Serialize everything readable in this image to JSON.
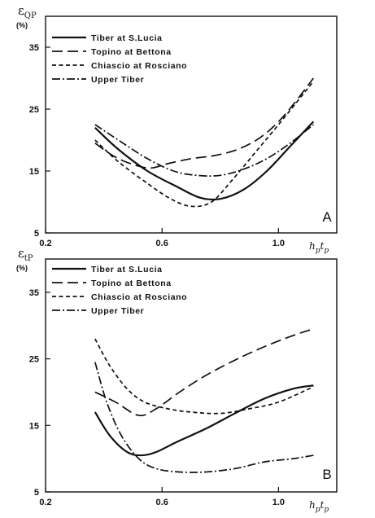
{
  "chart_data": [
    {
      "type": "line",
      "panel_label": "A",
      "ylabel": "ε",
      "ylabel_sub": "QP",
      "yunit": "(%)",
      "xlabel": "h",
      "xlabel_sub1": "p",
      "xlabel_mid": "t",
      "xlabel_sub2": "p",
      "xlim": [
        0.2,
        1.2
      ],
      "ylim": [
        5,
        40
      ],
      "xticks": [
        "0.2",
        "0.6",
        "1.0"
      ],
      "yticks": [
        "5",
        "15",
        "25",
        "35"
      ],
      "legend_position": "top-left",
      "series": [
        {
          "name": "Tiber at S.Lucia",
          "style": "solid",
          "x": [
            0.37,
            0.45,
            0.55,
            0.65,
            0.73,
            0.8,
            0.88,
            0.96,
            1.04,
            1.12
          ],
          "y": [
            22.0,
            18.5,
            15.0,
            12.5,
            10.7,
            10.5,
            12.0,
            15.0,
            19.0,
            23.0
          ]
        },
        {
          "name": "Topino at Bettona",
          "style": "long-dash",
          "x": [
            0.37,
            0.45,
            0.55,
            0.62,
            0.7,
            0.78,
            0.86,
            0.94,
            1.02,
            1.12
          ],
          "y": [
            19.5,
            17.0,
            15.5,
            16.2,
            17.0,
            17.5,
            18.5,
            20.5,
            24.0,
            30.0
          ]
        },
        {
          "name": "Chiascio at Rosciano",
          "style": "short-dash",
          "x": [
            0.37,
            0.45,
            0.55,
            0.63,
            0.7,
            0.77,
            0.84,
            0.92,
            1.0,
            1.12
          ],
          "y": [
            20.0,
            16.5,
            13.0,
            10.5,
            9.3,
            10.0,
            13.5,
            18.0,
            22.5,
            29.5
          ]
        },
        {
          "name": "Upper Tiber",
          "style": "dash-dot",
          "x": [
            0.37,
            0.45,
            0.55,
            0.64,
            0.72,
            0.8,
            0.88,
            0.96,
            1.04,
            1.12
          ],
          "y": [
            22.5,
            20.0,
            17.0,
            15.0,
            14.3,
            14.3,
            15.3,
            17.0,
            19.5,
            22.5
          ]
        }
      ]
    },
    {
      "type": "line",
      "panel_label": "B",
      "ylabel": "ε",
      "ylabel_sub": "tP",
      "yunit": "(%)",
      "xlabel": "h",
      "xlabel_sub1": "p",
      "xlabel_mid": "t",
      "xlabel_sub2": "p",
      "xlim": [
        0.2,
        1.2
      ],
      "ylim": [
        5,
        40
      ],
      "xticks": [
        "0.2",
        "0.6",
        "1.0"
      ],
      "yticks": [
        "5",
        "15",
        "25",
        "35"
      ],
      "legend_position": "top-left",
      "series": [
        {
          "name": "Tiber at S.Lucia",
          "style": "solid",
          "x": [
            0.37,
            0.42,
            0.48,
            0.53,
            0.58,
            0.65,
            0.75,
            0.85,
            0.95,
            1.05,
            1.12
          ],
          "y": [
            17.0,
            13.5,
            11.0,
            10.5,
            11.0,
            12.5,
            14.5,
            16.8,
            19.0,
            20.5,
            21.0
          ]
        },
        {
          "name": "Topino at Bettona",
          "style": "long-dash",
          "x": [
            0.37,
            0.44,
            0.52,
            0.58,
            0.66,
            0.75,
            0.85,
            0.95,
            1.05,
            1.12
          ],
          "y": [
            20.0,
            18.5,
            16.5,
            17.5,
            20.0,
            22.5,
            24.8,
            26.8,
            28.5,
            29.5
          ]
        },
        {
          "name": "Chiascio at Rosciano",
          "style": "short-dash",
          "x": [
            0.37,
            0.42,
            0.48,
            0.54,
            0.62,
            0.7,
            0.8,
            0.9,
            1.0,
            1.12
          ],
          "y": [
            28.0,
            24.0,
            20.5,
            18.5,
            17.5,
            17.0,
            16.8,
            17.5,
            18.5,
            20.8
          ]
        },
        {
          "name": "Upper Tiber",
          "style": "dash-dot",
          "x": [
            0.37,
            0.41,
            0.46,
            0.52,
            0.58,
            0.66,
            0.75,
            0.85,
            0.95,
            1.05,
            1.12
          ],
          "y": [
            24.5,
            18.5,
            13.5,
            10.0,
            8.5,
            8.0,
            8.0,
            8.5,
            9.5,
            10.0,
            10.5
          ]
        }
      ]
    }
  ]
}
